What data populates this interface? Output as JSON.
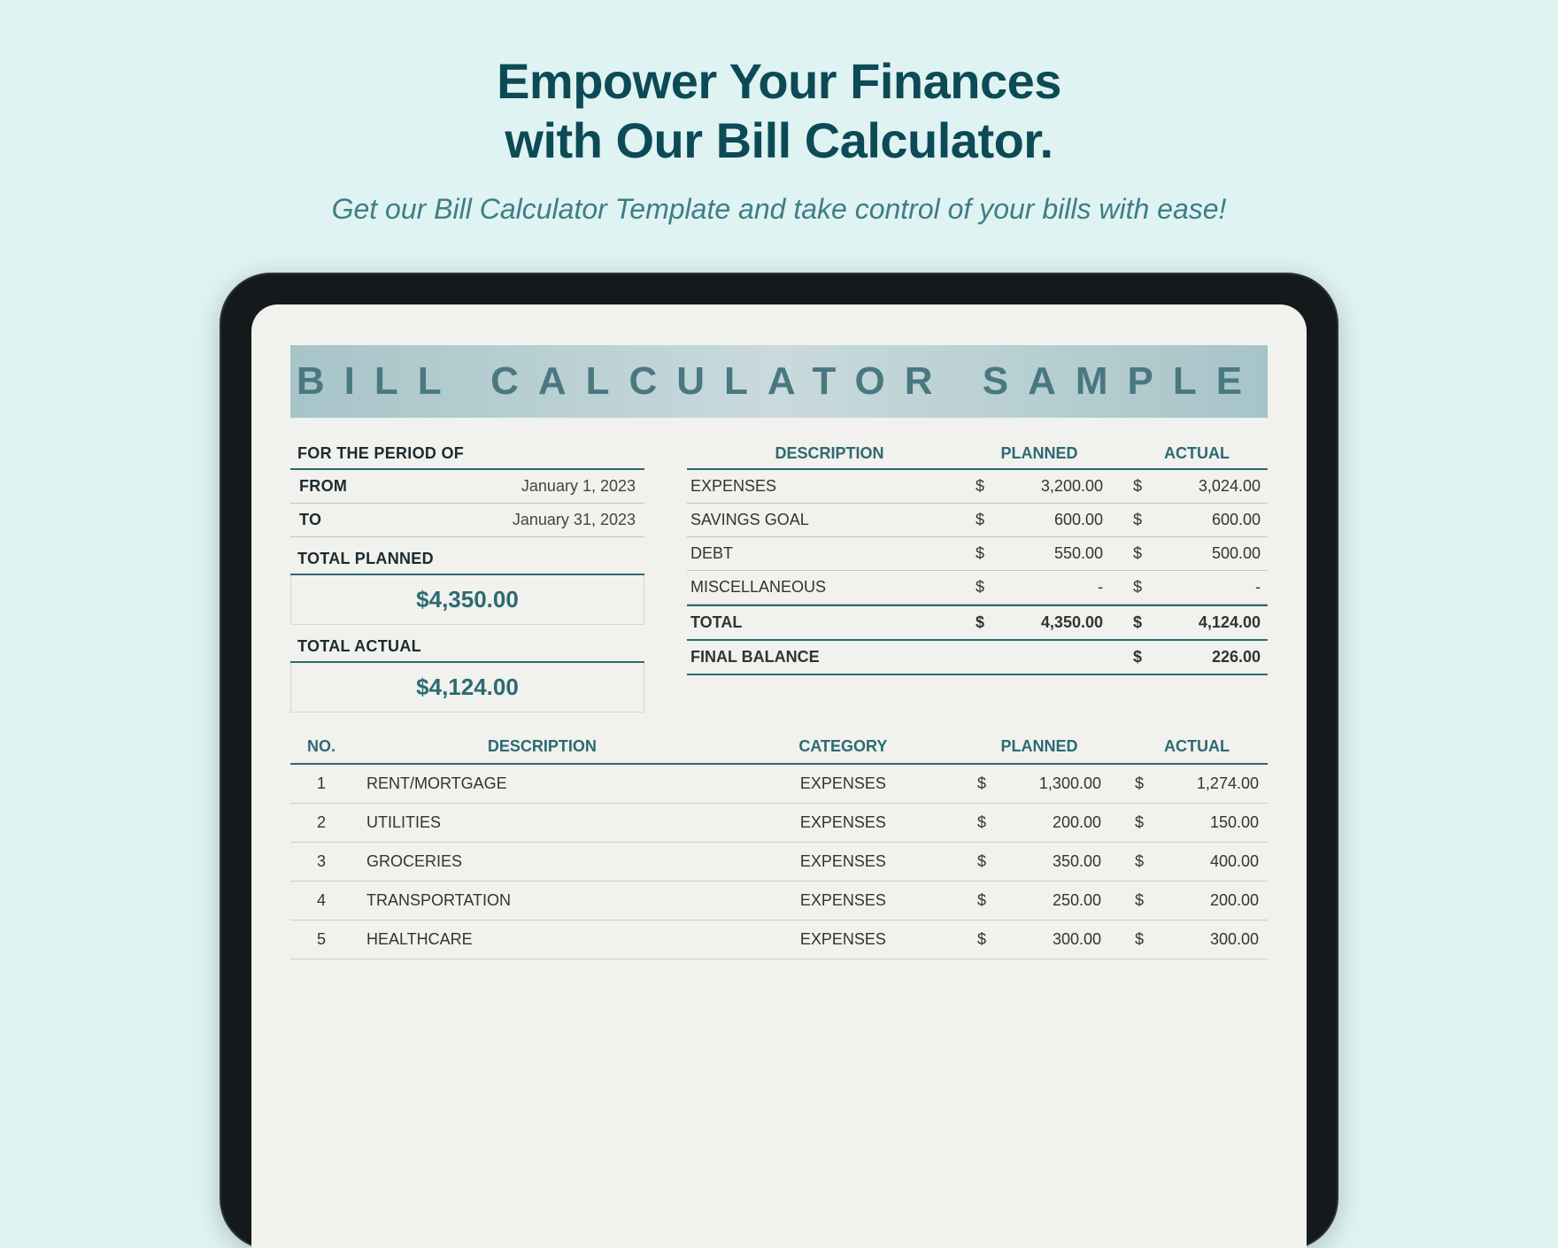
{
  "headline_l1": "Empower Your Finances",
  "headline_l2": "with Our Bill Calculator.",
  "subhead": "Get our Bill Calculator Template and take control of your bills with ease!",
  "doc_title": "BILL CALCULATOR SAMPLE",
  "period": {
    "label": "FOR THE PERIOD OF",
    "from_label": "FROM",
    "from_value": "January 1, 2023",
    "to_label": "TO",
    "to_value": "January 31, 2023"
  },
  "totals": {
    "planned_label": "TOTAL PLANNED",
    "planned_value": "$4,350.00",
    "actual_label": "TOTAL ACTUAL",
    "actual_value": "$4,124.00"
  },
  "summary": {
    "head_desc": "DESCRIPTION",
    "head_planned": "PLANNED",
    "head_actual": "ACTUAL",
    "rows": [
      {
        "desc": "EXPENSES",
        "planned": "3,200.00",
        "actual": "3,024.00"
      },
      {
        "desc": "SAVINGS GOAL",
        "planned": "600.00",
        "actual": "600.00"
      },
      {
        "desc": "DEBT",
        "planned": "550.00",
        "actual": "500.00"
      },
      {
        "desc": "MISCELLANEOUS",
        "planned": "-",
        "actual": "-"
      }
    ],
    "total_label": "TOTAL",
    "total_planned": "4,350.00",
    "total_actual": "4,124.00",
    "final_label": "FINAL BALANCE",
    "final_value": "226.00"
  },
  "detail": {
    "head_no": "NO.",
    "head_desc": "DESCRIPTION",
    "head_cat": "CATEGORY",
    "head_planned": "PLANNED",
    "head_actual": "ACTUAL",
    "rows": [
      {
        "no": "1",
        "desc": "RENT/MORTGAGE",
        "cat": "EXPENSES",
        "planned": "1,300.00",
        "actual": "1,274.00"
      },
      {
        "no": "2",
        "desc": "UTILITIES",
        "cat": "EXPENSES",
        "planned": "200.00",
        "actual": "150.00"
      },
      {
        "no": "3",
        "desc": "GROCERIES",
        "cat": "EXPENSES",
        "planned": "350.00",
        "actual": "400.00"
      },
      {
        "no": "4",
        "desc": "TRANSPORTATION",
        "cat": "EXPENSES",
        "planned": "250.00",
        "actual": "200.00"
      },
      {
        "no": "5",
        "desc": "HEALTHCARE",
        "cat": "EXPENSES",
        "planned": "300.00",
        "actual": "300.00"
      }
    ]
  },
  "currency": "$"
}
